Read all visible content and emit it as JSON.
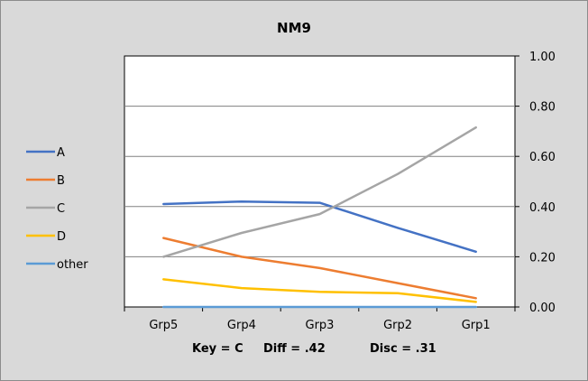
{
  "chart_data": {
    "type": "line",
    "title": "NM9",
    "categories": [
      "Grp5",
      "Grp4",
      "Grp3",
      "Grp2",
      "Grp1"
    ],
    "yticks": [
      "1.00",
      "0.80",
      "0.60",
      "0.40",
      "0.20",
      "0.00"
    ],
    "ylim": [
      0,
      1
    ],
    "grid": true,
    "legend_position": "left",
    "series": [
      {
        "name": "A",
        "color": "#4472c4",
        "values": [
          0.41,
          0.42,
          0.415,
          0.315,
          0.22
        ]
      },
      {
        "name": "B",
        "color": "#ed7d31",
        "values": [
          0.275,
          0.2,
          0.155,
          0.095,
          0.035
        ]
      },
      {
        "name": "C",
        "color": "#a5a5a5",
        "values": [
          0.2,
          0.295,
          0.37,
          0.53,
          0.715
        ]
      },
      {
        "name": "D",
        "color": "#ffc000",
        "values": [
          0.11,
          0.075,
          0.06,
          0.055,
          0.02
        ]
      },
      {
        "name": "other",
        "color": "#5b9bd5",
        "values": [
          0.0,
          0.0,
          0.0,
          0.0,
          0.0
        ]
      }
    ],
    "footer": {
      "key": "Key = C",
      "diff": "Diff = .42",
      "disc": "Disc = .31"
    }
  }
}
